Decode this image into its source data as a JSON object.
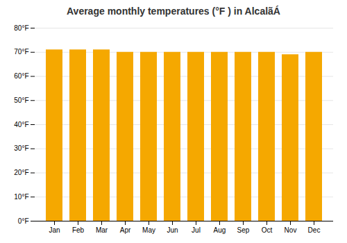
{
  "chart_data": {
    "type": "bar",
    "title": "Average monthly temperatures (°F ) in AlcalãÁ",
    "categories": [
      "Jan",
      "Feb",
      "Mar",
      "Apr",
      "May",
      "Jun",
      "Jul",
      "Aug",
      "Sep",
      "Oct",
      "Nov",
      "Dec"
    ],
    "values": [
      71,
      71,
      71,
      70,
      70,
      70,
      70,
      70,
      70,
      70,
      69,
      70
    ],
    "color": "#F5A800",
    "ylim": [
      0,
      80
    ],
    "yticks": [
      {
        "value": 0,
        "label": "0°F"
      },
      {
        "value": 10,
        "label": "10°F"
      },
      {
        "value": 20,
        "label": "20°F"
      },
      {
        "value": 30,
        "label": "30°F"
      },
      {
        "value": 40,
        "label": "40°F"
      },
      {
        "value": 50,
        "label": "50°F"
      },
      {
        "value": 60,
        "label": "60°F"
      },
      {
        "value": 70,
        "label": "70°F"
      },
      {
        "value": 80,
        "label": "80°F"
      }
    ],
    "grid": true
  }
}
